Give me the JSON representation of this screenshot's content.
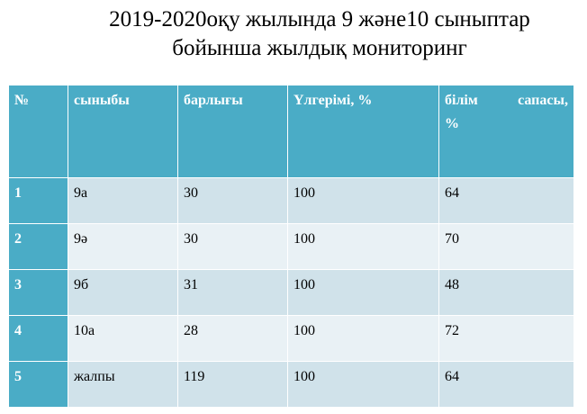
{
  "title": {
    "line1": "2019-2020оқу жылында 9 және10 сыныптар",
    "line2": "бойынша жылдық мониторинг"
  },
  "table": {
    "headers": {
      "no": "№",
      "class": "сыныбы",
      "total": "барлығы",
      "progress": "Үлгерімі, %",
      "quality_word1": "білім",
      "quality_word2": "сапасы,",
      "quality_unit": "%"
    },
    "rows": [
      {
        "no": "1",
        "class": "9а",
        "total": "30",
        "progress": "100",
        "quality": "64"
      },
      {
        "no": "2",
        "class": "9ә",
        "total": "30",
        "progress": "100",
        "quality": "70"
      },
      {
        "no": "3",
        "class": "9б",
        "total": "31",
        "progress": "100",
        "quality": "48"
      },
      {
        "no": "4",
        "class": "10а",
        "total": "28",
        "progress": "100",
        "quality": "72"
      },
      {
        "no": "5",
        "class": "жалпы",
        "total": "119",
        "progress": "100",
        "quality": "64"
      }
    ]
  },
  "colors": {
    "header_bg": "#4aacc6",
    "row_odd_bg": "#d0e2ea",
    "row_even_bg": "#e9f1f5"
  }
}
